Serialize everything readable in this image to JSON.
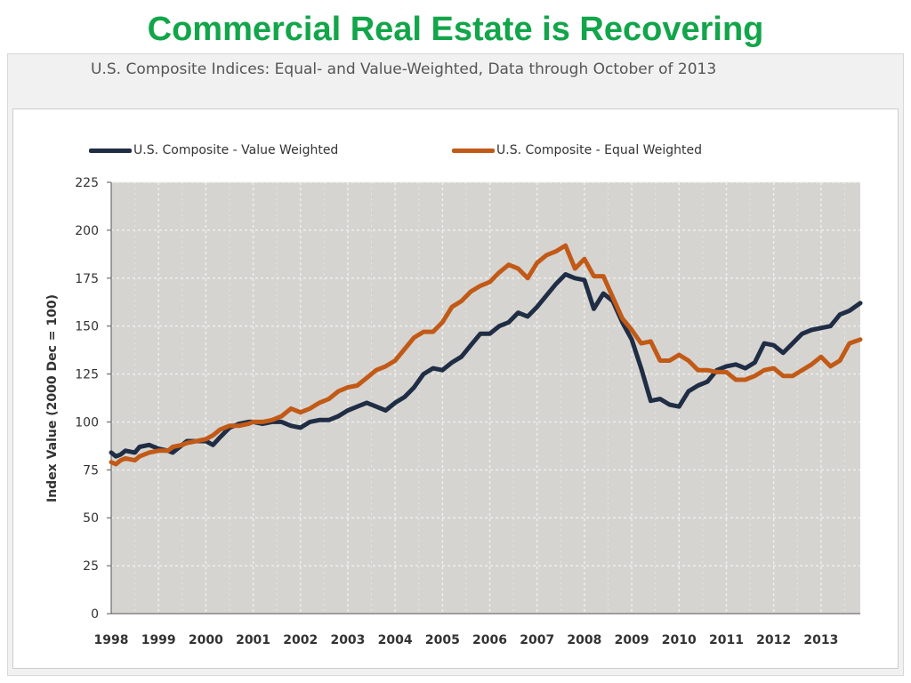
{
  "slide": {
    "title": "Commercial Real Estate is Recovering"
  },
  "chart_data": {
    "type": "line",
    "title": "U.S. Composite Indices: Equal- and Value-Weighted,  Data through October of 2013",
    "xlabel": "",
    "ylabel": "Index Value (2000 Dec = 100)",
    "xlim": [
      1998.0,
      2013.83
    ],
    "ylim": [
      0,
      225
    ],
    "yticks": [
      0,
      25,
      50,
      75,
      100,
      125,
      150,
      175,
      200,
      225
    ],
    "xticks": [
      "1998",
      "1999",
      "2000",
      "2001",
      "2002",
      "2003",
      "2004",
      "2005",
      "2006",
      "2007",
      "2008",
      "2009",
      "2010",
      "2011",
      "2012",
      "2013"
    ],
    "grid": true,
    "legend": "top",
    "plot_background": "#d6d4d0",
    "series": [
      {
        "name": "U.S. Composite - Value Weighted",
        "color": "#1f2d45",
        "x": [
          1998.0,
          1998.1,
          1998.2,
          1998.3,
          1998.5,
          1998.6,
          1998.8,
          1999.0,
          1999.2,
          1999.3,
          1999.5,
          1999.6,
          1999.8,
          2000.0,
          2000.15,
          2000.3,
          2000.5,
          2000.7,
          2000.9,
          2001.0,
          2001.2,
          2001.4,
          2001.6,
          2001.8,
          2002.0,
          2002.2,
          2002.4,
          2002.6,
          2002.8,
          2003.0,
          2003.2,
          2003.4,
          2003.6,
          2003.8,
          2004.0,
          2004.2,
          2004.4,
          2004.6,
          2004.8,
          2005.0,
          2005.2,
          2005.4,
          2005.6,
          2005.8,
          2006.0,
          2006.2,
          2006.4,
          2006.6,
          2006.8,
          2007.0,
          2007.2,
          2007.4,
          2007.6,
          2007.8,
          2008.0,
          2008.2,
          2008.4,
          2008.6,
          2008.8,
          2009.0,
          2009.2,
          2009.4,
          2009.6,
          2009.8,
          2010.0,
          2010.2,
          2010.4,
          2010.6,
          2010.8,
          2011.0,
          2011.2,
          2011.4,
          2011.6,
          2011.8,
          2012.0,
          2012.2,
          2012.4,
          2012.6,
          2012.8,
          2013.0,
          2013.2,
          2013.4,
          2013.6,
          2013.83
        ],
        "values": [
          84,
          82,
          83,
          85,
          84,
          87,
          88,
          86,
          85,
          84,
          88,
          90,
          90,
          90,
          88,
          92,
          97,
          99,
          100,
          100,
          99,
          100,
          100,
          98,
          97,
          100,
          101,
          101,
          103,
          106,
          108,
          110,
          108,
          106,
          110,
          113,
          118,
          125,
          128,
          127,
          131,
          134,
          140,
          146,
          146,
          150,
          152,
          157,
          155,
          160,
          166,
          172,
          177,
          175,
          174,
          159,
          167,
          163,
          152,
          143,
          128,
          111,
          112,
          109,
          108,
          116,
          119,
          121,
          127,
          129,
          130,
          128,
          131,
          141,
          140,
          136,
          141,
          146,
          148,
          149,
          150,
          156,
          158,
          162
        ]
      },
      {
        "name": "U.S. Composite - Equal Weighted",
        "color": "#c25a17",
        "x": [
          1998.0,
          1998.1,
          1998.2,
          1998.3,
          1998.5,
          1998.6,
          1998.8,
          1999.0,
          1999.2,
          1999.3,
          1999.5,
          1999.6,
          1999.8,
          2000.0,
          2000.15,
          2000.3,
          2000.5,
          2000.7,
          2000.9,
          2001.0,
          2001.2,
          2001.4,
          2001.6,
          2001.8,
          2002.0,
          2002.2,
          2002.4,
          2002.6,
          2002.8,
          2003.0,
          2003.2,
          2003.4,
          2003.6,
          2003.8,
          2004.0,
          2004.2,
          2004.4,
          2004.6,
          2004.8,
          2005.0,
          2005.2,
          2005.4,
          2005.6,
          2005.8,
          2006.0,
          2006.2,
          2006.4,
          2006.6,
          2006.8,
          2007.0,
          2007.2,
          2007.4,
          2007.6,
          2007.8,
          2008.0,
          2008.2,
          2008.4,
          2008.6,
          2008.8,
          2009.0,
          2009.2,
          2009.4,
          2009.6,
          2009.8,
          2010.0,
          2010.2,
          2010.4,
          2010.6,
          2010.8,
          2011.0,
          2011.2,
          2011.4,
          2011.6,
          2011.8,
          2012.0,
          2012.2,
          2012.4,
          2012.6,
          2012.8,
          2013.0,
          2013.2,
          2013.4,
          2013.6,
          2013.83
        ],
        "values": [
          79,
          78,
          80,
          81,
          80,
          82,
          84,
          85,
          85,
          87,
          88,
          89,
          90,
          91,
          93,
          96,
          98,
          98,
          99,
          100,
          100,
          101,
          103,
          107,
          105,
          107,
          110,
          112,
          116,
          118,
          119,
          123,
          127,
          129,
          132,
          138,
          144,
          147,
          147,
          152,
          160,
          163,
          168,
          171,
          173,
          178,
          182,
          180,
          175,
          183,
          187,
          189,
          192,
          180,
          185,
          176,
          176,
          165,
          154,
          148,
          141,
          142,
          132,
          132,
          135,
          132,
          127,
          127,
          126,
          126,
          122,
          122,
          124,
          127,
          128,
          124,
          124,
          127,
          130,
          134,
          129,
          132,
          141,
          143
        ]
      }
    ]
  }
}
